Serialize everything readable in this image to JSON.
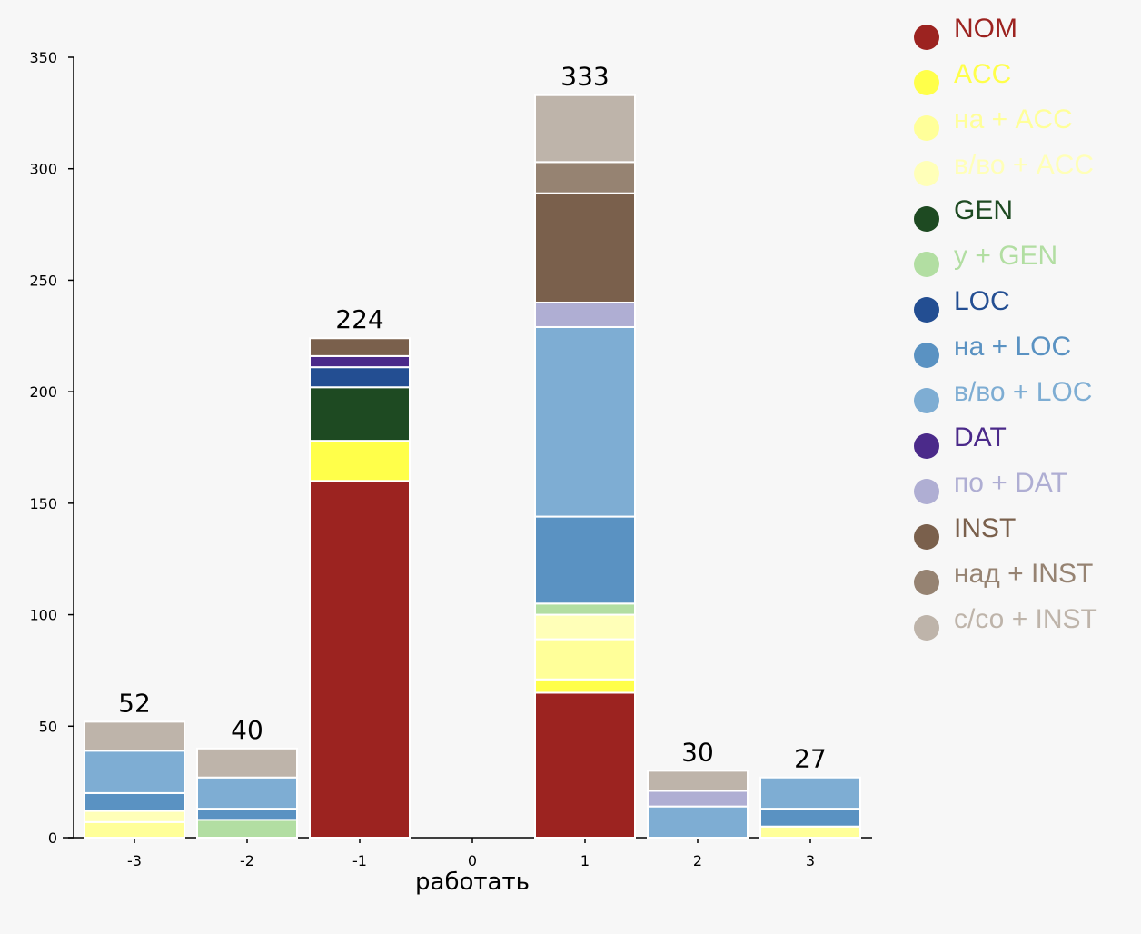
{
  "chart_data": {
    "type": "bar",
    "stacked": true,
    "xlabel": "работать",
    "ylabel": "",
    "ylim": [
      0,
      350
    ],
    "yticks": [
      0,
      50,
      100,
      150,
      200,
      250,
      300,
      350
    ],
    "categories": [
      "-3",
      "-2",
      "-1",
      "0",
      "1",
      "2",
      "3"
    ],
    "totals": [
      52,
      40,
      224,
      null,
      333,
      30,
      27
    ],
    "legend_position": "right",
    "series": [
      {
        "name": "NOM",
        "color": "#9c2320",
        "values": [
          0,
          0,
          160,
          0,
          65,
          0,
          0
        ]
      },
      {
        "name": "ACC",
        "color": "#ffff4a",
        "values": [
          0,
          0,
          18,
          0,
          6,
          0,
          0
        ]
      },
      {
        "name": "на + ACC",
        "color": "#ffff99",
        "values": [
          7,
          0,
          0,
          0,
          18,
          0,
          5
        ]
      },
      {
        "name": "в/во + ACC",
        "color": "#ffffb8",
        "values": [
          5,
          0,
          0,
          0,
          11,
          0,
          0
        ]
      },
      {
        "name": "GEN",
        "color": "#1e4a22",
        "values": [
          0,
          0,
          24,
          0,
          0,
          0,
          0
        ]
      },
      {
        "name": "у + GEN",
        "color": "#b2dea2",
        "values": [
          0,
          8,
          0,
          0,
          5,
          0,
          0
        ]
      },
      {
        "name": "LOC",
        "color": "#234e92",
        "values": [
          0,
          0,
          9,
          0,
          0,
          0,
          0
        ]
      },
      {
        "name": "на + LOC",
        "color": "#5a92c2",
        "values": [
          8,
          5,
          0,
          0,
          39,
          0,
          8
        ]
      },
      {
        "name": "в/во + LOC",
        "color": "#7eadd3",
        "values": [
          19,
          14,
          0,
          0,
          85,
          14,
          14
        ]
      },
      {
        "name": "DAT",
        "color": "#4b2a8a",
        "values": [
          0,
          0,
          5,
          0,
          0,
          0,
          0
        ]
      },
      {
        "name": "по + DAT",
        "color": "#afaed3",
        "values": [
          0,
          0,
          0,
          0,
          11,
          7,
          0
        ]
      },
      {
        "name": "INST",
        "color": "#7a604c",
        "values": [
          0,
          0,
          8,
          0,
          49,
          0,
          0
        ]
      },
      {
        "name": "над + INST",
        "color": "#968372",
        "values": [
          0,
          0,
          0,
          0,
          14,
          0,
          0
        ]
      },
      {
        "name": "с/со + INST",
        "color": "#beb4aa",
        "values": [
          13,
          13,
          0,
          0,
          30,
          9,
          0
        ]
      }
    ]
  }
}
